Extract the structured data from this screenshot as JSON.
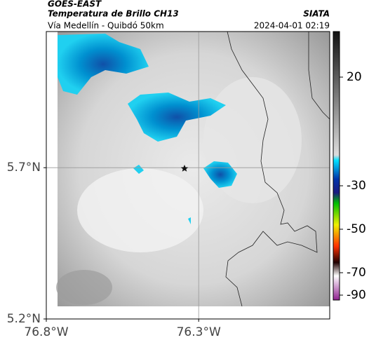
{
  "header": {
    "source": "GOES-EAST",
    "title": "Temperatura de Brillo CH13",
    "subtitle": "Vía Medellín - Quibdó 50km",
    "credit": "SIATA",
    "datetime": "2024-04-01 02:19"
  },
  "map": {
    "xlim": [
      -76.8,
      -75.87
    ],
    "ylim": [
      5.2,
      6.15
    ],
    "xticks": [
      {
        "value": -76.8,
        "label": "76.8°W"
      },
      {
        "value": -76.3,
        "label": "76.3°W"
      }
    ],
    "yticks": [
      {
        "value": 5.2,
        "label": "5.2°N"
      },
      {
        "value": 5.7,
        "label": "5.7°N"
      }
    ],
    "grid": true
  },
  "colorbar": {
    "ticks": [
      20,
      -30,
      -50,
      -70,
      -90
    ]
  }
}
